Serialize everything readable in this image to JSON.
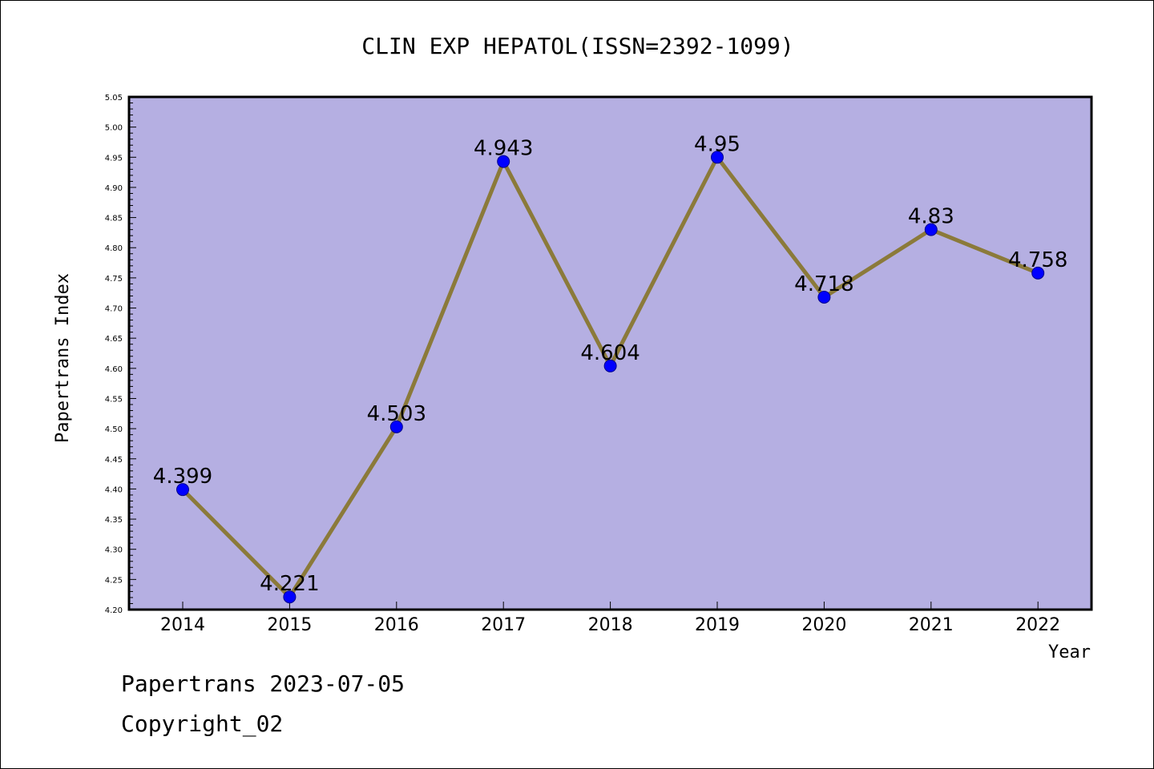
{
  "footer": {
    "date_line": "Papertrans 2023-07-05",
    "copyright_line": "Copyright_02"
  },
  "colors": {
    "plot_background": "#b5afe2",
    "line": "#8b7a3a",
    "marker_fill": "#0000ff",
    "marker_stroke": "#00008b",
    "frame": "#000000"
  },
  "chart_data": {
    "type": "line",
    "title": "CLIN EXP HEPATOL(ISSN=2392-1099)",
    "xlabel": "Year",
    "ylabel": "Papertrans Index",
    "categories": [
      "2014",
      "2015",
      "2016",
      "2017",
      "2018",
      "2019",
      "2020",
      "2021",
      "2022"
    ],
    "series": [
      {
        "values": [
          4.399,
          4.221,
          4.503,
          4.943,
          4.604,
          4.95,
          4.718,
          4.83,
          4.758
        ],
        "labels": [
          "4.399",
          "4.221",
          "4.503",
          "4.943",
          "4.604",
          "4.95",
          "4.718",
          "4.83",
          "4.758"
        ]
      }
    ],
    "ylim": [
      4.2,
      5.05
    ],
    "yticks": [
      "4.20",
      "4.25",
      "4.30",
      "4.35",
      "4.40",
      "4.45",
      "4.50",
      "4.55",
      "4.60",
      "4.65",
      "4.70",
      "4.75",
      "4.80",
      "4.85",
      "4.90",
      "4.95",
      "5.00",
      "5.05"
    ],
    "grid": false,
    "legend": "none"
  }
}
